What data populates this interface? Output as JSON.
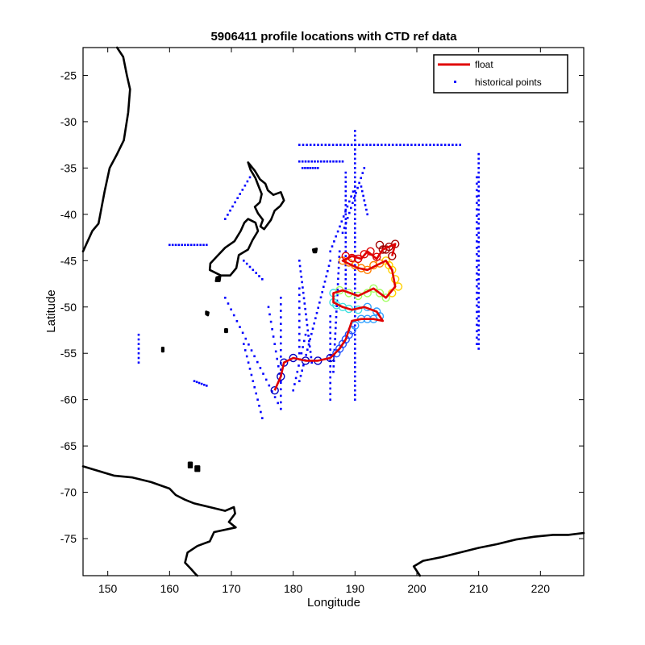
{
  "chart_data": {
    "type": "scatter",
    "title": "5906411 profile locations with CTD ref data",
    "xlabel": "Longitude",
    "ylabel": "Latitude",
    "xlim": [
      146,
      227
    ],
    "ylim": [
      -79,
      -22
    ],
    "xticks": [
      150,
      160,
      170,
      180,
      190,
      200,
      210,
      220
    ],
    "yticks": [
      -25,
      -30,
      -35,
      -40,
      -45,
      -50,
      -55,
      -60,
      -65,
      -70,
      -75
    ],
    "xtick_labels": [
      "150",
      "160",
      "170",
      "180",
      "190",
      "200",
      "210",
      "220"
    ],
    "ytick_labels": [
      "-25",
      "-30",
      "-35",
      "-40",
      "-45",
      "-50",
      "-55",
      "-60",
      "-65",
      "-70",
      "-75"
    ],
    "grid": false,
    "legend": {
      "position": "top-right",
      "entries": [
        {
          "label": "float",
          "color": "#e00000",
          "marker": "line"
        },
        {
          "label": "historical points",
          "color": "#0000ff",
          "marker": "dot"
        }
      ]
    },
    "colors": {
      "float": "#e00000",
      "historical": "#0000ff",
      "coastline": "#000000",
      "profile_colors": [
        "#0000c0",
        "#2050ff",
        "#30a0ff",
        "#40e0e0",
        "#a0ff60",
        "#ffd000",
        "#ff8000",
        "#e00000",
        "#a00000"
      ]
    },
    "series": [
      {
        "name": "float",
        "kind": "line",
        "x": [
          177.0,
          178.0,
          178.5,
          180.0,
          182.0,
          184.0,
          186.0,
          187.5,
          188.5,
          189.0,
          189.5,
          191.0,
          193.0,
          194.5,
          193.5,
          191.5,
          189.5,
          188.0,
          186.5,
          186.5,
          188.0,
          190.5,
          193.0,
          195.0,
          196.5,
          196.0,
          195.0,
          193.5,
          192.0,
          190.5,
          189.5,
          188.0,
          189.5,
          191.0,
          192.0,
          193.5,
          194.5,
          195.5,
          196.5,
          196.0
        ],
        "y": [
          -59.0,
          -57.5,
          -56.0,
          -55.5,
          -55.8,
          -55.8,
          -55.5,
          -54.5,
          -53.5,
          -52.5,
          -51.5,
          -51.3,
          -51.3,
          -51.5,
          -50.5,
          -50.0,
          -50.3,
          -50.0,
          -49.5,
          -48.5,
          -48.2,
          -48.8,
          -48.0,
          -49.0,
          -47.8,
          -46.0,
          -45.0,
          -45.5,
          -46.0,
          -45.8,
          -45.5,
          -45.0,
          -44.5,
          -44.8,
          -44.0,
          -44.8,
          -43.8,
          -43.5,
          -43.2,
          -44.5
        ]
      },
      {
        "name": "historical points",
        "kind": "scatter",
        "groups": [
          {
            "lon": 210,
            "lat_from": -33.5,
            "lat_to": -54.5,
            "step": 0.5
          },
          {
            "lon": 209.7,
            "lat_from": -36.0,
            "lat_to": -54.0,
            "step": 0.7
          },
          {
            "lat": -32.5,
            "lon_from": 181,
            "lon_to": 207,
            "step": 0.6
          },
          {
            "lon": 190,
            "lat_from": -31,
            "lat_to": -60,
            "step": 0.5
          },
          {
            "lat": -34.3,
            "lon_from": 181,
            "lon_to": 188,
            "step": 0.5
          },
          {
            "lat": -35.0,
            "lon_from": 181.5,
            "lon_to": 184,
            "step": 0.4
          },
          {
            "lon": 188.5,
            "lat_from": -35.5,
            "lat_to": -48,
            "step": 0.5
          },
          {
            "lon_from": 181,
            "lat_from": -58,
            "lon_to": 186,
            "lat_to": -45,
            "step": 0.6
          },
          {
            "lon_from": 186.5,
            "lat_from": -57,
            "lon_to": 187.5,
            "lat_to": -44,
            "step": 0.6
          },
          {
            "lon_from": 183,
            "lat_from": -56,
            "lon_to": 181,
            "lat_to": -45,
            "step": 0.6
          },
          {
            "lon_from": 186,
            "lat_from": -60,
            "lon_to": 186,
            "lat_to": -51,
            "step": 0.6
          },
          {
            "lon_from": 186,
            "lat_from": -44,
            "lon_to": 190,
            "lat_to": -37,
            "step": 0.6
          },
          {
            "lon_from": 188,
            "lat_from": -42,
            "lon_to": 191.5,
            "lat_to": -35,
            "step": 0.6
          },
          {
            "lon_from": 169,
            "lat_from": -49,
            "lon_to": 178,
            "lat_to": -61,
            "step": 0.8
          },
          {
            "lon_from": 172,
            "lat_from": -54,
            "lon_to": 175,
            "lat_to": -62,
            "step": 0.7
          },
          {
            "lon_from": 178,
            "lat_from": -49,
            "lon_to": 178,
            "lat_to": -61,
            "step": 0.7
          },
          {
            "lon_from": 176,
            "lat_from": -50,
            "lon_to": 178,
            "lat_to": -58,
            "step": 0.8
          },
          {
            "lon_from": 182,
            "lat_from": -53,
            "lon_to": 180,
            "lat_to": -59,
            "step": 0.7
          },
          {
            "lon_from": 181,
            "lat_from": -48,
            "lon_to": 181,
            "lat_to": -55,
            "step": 0.7
          },
          {
            "lon_from": 160,
            "lat_from": -43.3,
            "lon_to": 166,
            "lat_to": -43.3,
            "step": 0.5
          },
          {
            "lon_from": 155,
            "lat_from": -53,
            "lon_to": 155,
            "lat_to": -56,
            "step": 0.5
          },
          {
            "lon_from": 164,
            "lat_from": -58,
            "lon_to": 166,
            "lat_to": -58.5,
            "step": 0.4
          },
          {
            "lon_from": 169,
            "lat_from": -40.5,
            "lon_to": 173,
            "lat_to": -36,
            "step": 0.6
          },
          {
            "lon_from": 172,
            "lat_from": -45,
            "lon_to": 175,
            "lat_to": -47,
            "step": 0.6
          },
          {
            "lon_from": 191,
            "lat_from": -37,
            "lon_to": 192,
            "lat_to": -40,
            "step": 0.5
          }
        ]
      }
    ],
    "profile_markers": {
      "x": [
        177.0,
        178.0,
        178.5,
        180.0,
        182.0,
        184.0,
        186.0,
        187.0,
        187.5,
        188.0,
        188.5,
        189.0,
        189.5,
        190.0,
        191.0,
        192.0,
        193.0,
        194.0,
        193.5,
        192.0,
        190.5,
        189.0,
        188.0,
        187.0,
        186.5,
        186.5,
        187.5,
        189.0,
        190.5,
        192.0,
        193.0,
        194.0,
        195.0,
        196.0,
        197.0,
        196.5,
        196.0,
        195.5,
        195.0,
        194.0,
        193.0,
        192.0,
        191.0,
        190.0,
        189.0,
        188.0,
        188.5,
        189.5,
        190.5,
        191.5,
        192.5,
        193.5,
        194.5,
        195.5,
        196.5,
        196.0,
        195.0,
        194.0
      ],
      "y": [
        -59.0,
        -57.5,
        -56.0,
        -55.5,
        -55.8,
        -55.8,
        -55.5,
        -55.0,
        -54.5,
        -54.0,
        -53.5,
        -53.0,
        -52.5,
        -52.0,
        -51.3,
        -51.3,
        -51.3,
        -51.0,
        -50.5,
        -50.0,
        -50.3,
        -50.2,
        -50.0,
        -49.8,
        -49.5,
        -48.5,
        -48.2,
        -48.5,
        -48.8,
        -48.5,
        -48.0,
        -48.5,
        -49.0,
        -48.5,
        -47.8,
        -47.0,
        -46.0,
        -45.5,
        -45.0,
        -45.3,
        -45.5,
        -46.0,
        -45.8,
        -45.5,
        -45.2,
        -45.0,
        -44.5,
        -44.7,
        -44.8,
        -44.3,
        -44.0,
        -44.6,
        -43.8,
        -43.5,
        -43.2,
        -44.5,
        -43.8,
        -43.3
      ]
    }
  }
}
